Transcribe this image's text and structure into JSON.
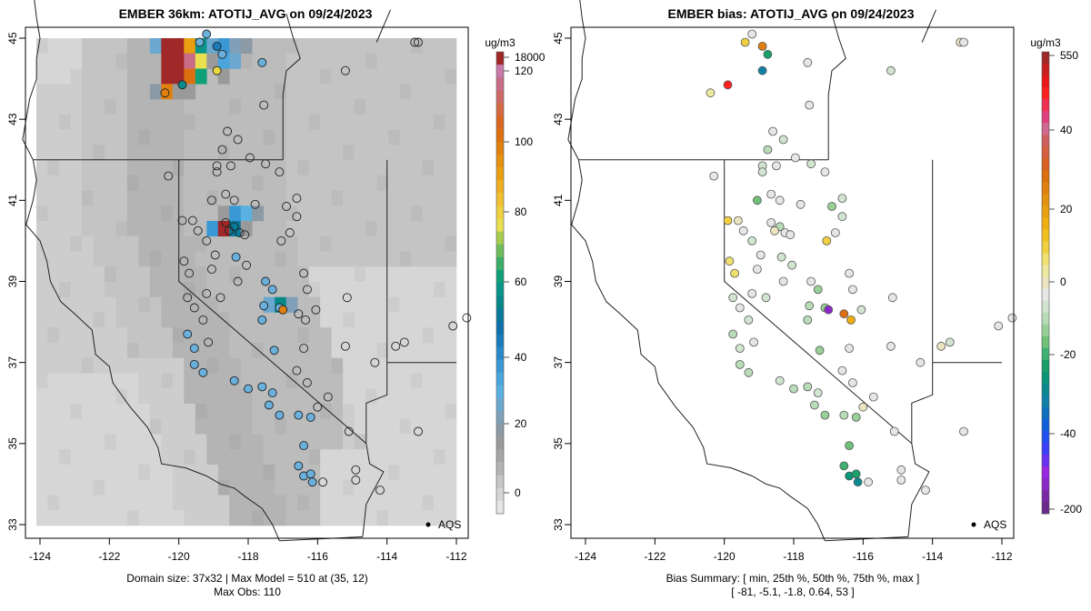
{
  "chart_data": [
    {
      "type": "heatmap",
      "title": "EMBER 36km: ATOTIJ_AVG on 09/24/2023",
      "xlabel": "",
      "ylabel": "",
      "x_ticks": [
        "-124",
        "-122",
        "-120",
        "-118",
        "-116",
        "-114",
        "-112"
      ],
      "y_ticks": [
        "33",
        "35",
        "37",
        "39",
        "41",
        "43",
        "45"
      ],
      "xlim": [
        -124.1,
        -111.9
      ],
      "ylim": [
        32.8,
        45.1
      ],
      "colorbar": {
        "unit": "ug/m3",
        "tick_labels": [
          "0",
          "20",
          "40",
          "60",
          "80",
          "100",
          "120",
          "18000"
        ],
        "colors": [
          "#e6e6e6",
          "#d6d6d6",
          "#c6c6c6",
          "#b4b4b4",
          "#a6a6a6",
          "#9a9a9a",
          "#8c9aa5",
          "#7fa0b8",
          "#6aa8cf",
          "#5ab0e0",
          "#4aa5dc",
          "#3a98d5",
          "#2a8ac8",
          "#1a7cba",
          "#0f70aa",
          "#0a7a9a",
          "#078888",
          "#08958a",
          "#10a078",
          "#3cae68",
          "#70bd5c",
          "#a8cc50",
          "#e8e050",
          "#f0d040",
          "#f2c030",
          "#eeb020",
          "#e8a010",
          "#e49010",
          "#e08010",
          "#dc7010",
          "#d86620",
          "#d46840",
          "#cc6a68",
          "#c86c88",
          "#c87aa8",
          "#a02828"
        ]
      },
      "annotation": "AQS",
      "footer_lines": [
        "Domain size: 37x32 | Max Model = 510 at (35, 12)",
        "Max Obs: 110"
      ],
      "grid_cols": 37,
      "grid_rows": 32,
      "grid_note": "values approximate, ug/m3 (row 0 = north)",
      "hotspots": [
        {
          "col": 10,
          "row": 0,
          "value": 30
        },
        {
          "col": 11,
          "row": 0,
          "value": 510
        },
        {
          "col": 12,
          "row": 0,
          "value": 510
        },
        {
          "col": 13,
          "row": 0,
          "value": 95
        },
        {
          "col": 14,
          "row": 0,
          "value": 62
        },
        {
          "col": 15,
          "row": 0,
          "value": 28
        },
        {
          "col": 16,
          "row": 0,
          "value": 42
        },
        {
          "col": 17,
          "row": 0,
          "value": 25
        },
        {
          "col": 18,
          "row": 0,
          "value": 22
        },
        {
          "col": 11,
          "row": 1,
          "value": 510
        },
        {
          "col": 12,
          "row": 1,
          "value": 510
        },
        {
          "col": 13,
          "row": 1,
          "value": 122
        },
        {
          "col": 14,
          "row": 1,
          "value": 80
        },
        {
          "col": 15,
          "row": 1,
          "value": 18
        },
        {
          "col": 16,
          "row": 1,
          "value": 35
        },
        {
          "col": 17,
          "row": 1,
          "value": 30
        },
        {
          "col": 11,
          "row": 2,
          "value": 510
        },
        {
          "col": 12,
          "row": 2,
          "value": 510
        },
        {
          "col": 13,
          "row": 2,
          "value": 108
        },
        {
          "col": 14,
          "row": 2,
          "value": 65
        },
        {
          "col": 16,
          "row": 2,
          "value": 18
        },
        {
          "col": 10,
          "row": 3,
          "value": 22
        },
        {
          "col": 11,
          "row": 3,
          "value": 104
        },
        {
          "col": 12,
          "row": 3,
          "value": 18
        },
        {
          "col": 13,
          "row": 3,
          "value": 18
        },
        {
          "col": 16,
          "row": 11,
          "value": 18
        },
        {
          "col": 17,
          "row": 11,
          "value": 40
        },
        {
          "col": 18,
          "row": 11,
          "value": 32
        },
        {
          "col": 19,
          "row": 11,
          "value": 22
        },
        {
          "col": 15,
          "row": 12,
          "value": 42
        },
        {
          "col": 16,
          "row": 12,
          "value": 510
        },
        {
          "col": 17,
          "row": 12,
          "value": 55
        },
        {
          "col": 18,
          "row": 12,
          "value": 20
        },
        {
          "col": 20,
          "row": 17,
          "value": 28
        },
        {
          "col": 21,
          "row": 17,
          "value": 60
        },
        {
          "col": 22,
          "row": 17,
          "value": 25
        }
      ]
    },
    {
      "type": "scatter",
      "title": "EMBER bias: ATOTIJ_AVG on 09/24/2023",
      "xlabel": "",
      "ylabel": "",
      "x_ticks": [
        "-124",
        "-122",
        "-120",
        "-118",
        "-116",
        "-114",
        "-112"
      ],
      "y_ticks": [
        "33",
        "35",
        "37",
        "39",
        "41",
        "43",
        "45"
      ],
      "xlim": [
        -124.1,
        -111.9
      ],
      "ylim": [
        32.8,
        45.1
      ],
      "colorbar": {
        "unit": "ug/m3",
        "tick_labels": [
          "-200",
          "-40",
          "-20",
          "0",
          "20",
          "40",
          "550"
        ],
        "colors": [
          "#6a2a8a",
          "#7a28a8",
          "#8a28c8",
          "#9a28e0",
          "#6a30f0",
          "#3a40f8",
          "#2050f0",
          "#1060d8",
          "#1070c0",
          "#1080a8",
          "#0a8a90",
          "#0a9478",
          "#18a068",
          "#40b070",
          "#70c078",
          "#98d098",
          "#b8dcb8",
          "#d0e4d0",
          "#e6e6e6",
          "#eae4c0",
          "#ece8a0",
          "#f0e070",
          "#f0d040",
          "#f0c020",
          "#eeb010",
          "#e8a010",
          "#e49010",
          "#e08010",
          "#dc7010",
          "#d86020",
          "#d46040",
          "#d06060",
          "#d06890",
          "#e04080",
          "#f03050",
          "#ff2020",
          "#e81818",
          "#c82020",
          "#a02828"
        ]
      },
      "annotation": "AQS",
      "footer_lines": [
        "Bias Summary: [ min, 25th %, 50th %, 75th %, max ]",
        "[ -81,   -5.1,   -1.8,   0.64,   53 ]"
      ],
      "bias_summary": {
        "min": -81,
        "p25": -5.1,
        "p50": -1.8,
        "p75": 0.64,
        "max": 53
      }
    }
  ],
  "sites": [
    {
      "lon": -119.2,
      "lat": 45.1,
      "obs": 25,
      "bias": 0
    },
    {
      "lon": -119.4,
      "lat": 44.9,
      "obs": 22,
      "bias": 10
    },
    {
      "lon": -118.9,
      "lat": 44.8,
      "obs": 40,
      "bias": 22
    },
    {
      "lon": -118.75,
      "lat": 44.6,
      "obs": 28,
      "bias": -15
    },
    {
      "lon": -117.6,
      "lat": 44.4,
      "obs": 18,
      "bias": 0
    },
    {
      "lon": -115.2,
      "lat": 44.2,
      "obs": 5,
      "bias": -2
    },
    {
      "lon": -118.9,
      "lat": 44.2,
      "obs": 75,
      "bias": -22
    },
    {
      "lon": -119.9,
      "lat": 43.85,
      "obs": 55,
      "bias": 53
    },
    {
      "lon": -120.4,
      "lat": 43.65,
      "obs": 5,
      "bias": 5
    },
    {
      "lon": -117.55,
      "lat": 43.35,
      "obs": 5,
      "bias": 0
    },
    {
      "lon": -118.6,
      "lat": 42.7,
      "obs": 5,
      "bias": 0
    },
    {
      "lon": -118.3,
      "lat": 42.5,
      "obs": 5,
      "bias": -3
    },
    {
      "lon": -118.75,
      "lat": 42.25,
      "obs": 5,
      "bias": -6
    },
    {
      "lon": -117.95,
      "lat": 42.05,
      "obs": 5,
      "bias": 0
    },
    {
      "lon": -118.9,
      "lat": 41.85,
      "obs": 5,
      "bias": -2
    },
    {
      "lon": -118.5,
      "lat": 41.85,
      "obs": 5,
      "bias": -1
    },
    {
      "lon": -117.5,
      "lat": 41.9,
      "obs": 5,
      "bias": -2
    },
    {
      "lon": -117.1,
      "lat": 41.7,
      "obs": 5,
      "bias": 0
    },
    {
      "lon": -120.3,
      "lat": 41.6,
      "obs": 5,
      "bias": 0
    },
    {
      "lon": -119.05,
      "lat": 41.0,
      "obs": 5,
      "bias": -10
    },
    {
      "lon": -118.65,
      "lat": 41.15,
      "obs": 5,
      "bias": 0
    },
    {
      "lon": -118.4,
      "lat": 41.0,
      "obs": 5,
      "bias": 0
    },
    {
      "lon": -117.8,
      "lat": 40.9,
      "obs": 5,
      "bias": -1
    },
    {
      "lon": -116.9,
      "lat": 40.85,
      "obs": 5,
      "bias": -8
    },
    {
      "lon": -116.6,
      "lat": 41.05,
      "obs": 5,
      "bias": -2
    },
    {
      "lon": -116.6,
      "lat": 40.6,
      "obs": 5,
      "bias": -3
    },
    {
      "lon": -116.8,
      "lat": 40.2,
      "obs": 5,
      "bias": 0
    },
    {
      "lon": -119.9,
      "lat": 40.5,
      "obs": 5,
      "bias": 10
    },
    {
      "lon": -118.65,
      "lat": 40.45,
      "obs": 5,
      "bias": 0
    },
    {
      "lon": -118.4,
      "lat": 40.35,
      "obs": 5,
      "bias": -6
    },
    {
      "lon": -118.25,
      "lat": 40.2,
      "obs": 5,
      "bias": 0
    },
    {
      "lon": -118.55,
      "lat": 40.25,
      "obs": 5,
      "bias": 2
    },
    {
      "lon": -118.1,
      "lat": 40.15,
      "obs": 5,
      "bias": 0
    },
    {
      "lon": -117.05,
      "lat": 40.0,
      "obs": 5,
      "bias": 10
    },
    {
      "lon": -118.35,
      "lat": 39.6,
      "obs": 25,
      "bias": -3
    },
    {
      "lon": -118.05,
      "lat": 39.4,
      "obs": 5,
      "bias": -4
    },
    {
      "lon": -116.4,
      "lat": 39.2,
      "obs": 5,
      "bias": 0
    },
    {
      "lon": -116.3,
      "lat": 38.8,
      "obs": 5,
      "bias": 0
    },
    {
      "lon": -116.05,
      "lat": 38.3,
      "obs": 5,
      "bias": -2
    },
    {
      "lon": -117.5,
      "lat": 39.0,
      "obs": 25,
      "bias": 0
    },
    {
      "lon": -117.3,
      "lat": 38.8,
      "obs": 25,
      "bias": -8
    },
    {
      "lon": -117.55,
      "lat": 38.4,
      "obs": 25,
      "bias": -6
    },
    {
      "lon": -117.1,
      "lat": 38.35,
      "obs": 28,
      "bias": -8
    },
    {
      "lon": -117.0,
      "lat": 38.3,
      "obs": 110,
      "bias": -81
    },
    {
      "lon": -116.55,
      "lat": 38.2,
      "obs": 5,
      "bias": 25
    },
    {
      "lon": -116.35,
      "lat": 38.05,
      "obs": 5,
      "bias": 15
    },
    {
      "lon": -117.6,
      "lat": 38.05,
      "obs": 28,
      "bias": -5
    },
    {
      "lon": -117.25,
      "lat": 37.3,
      "obs": 25,
      "bias": -8
    },
    {
      "lon": -116.4,
      "lat": 37.35,
      "obs": 5,
      "bias": 0
    },
    {
      "lon": -116.6,
      "lat": 36.8,
      "obs": 5,
      "bias": 0
    },
    {
      "lon": -116.3,
      "lat": 36.5,
      "obs": 5,
      "bias": 0
    },
    {
      "lon": -115.7,
      "lat": 36.15,
      "obs": 5,
      "bias": 0
    },
    {
      "lon": -116.0,
      "lat": 35.9,
      "obs": 5,
      "bias": 3
    },
    {
      "lon": -116.2,
      "lat": 35.65,
      "obs": 28,
      "bias": -8
    },
    {
      "lon": -116.55,
      "lat": 35.7,
      "obs": 28,
      "bias": -6
    },
    {
      "lon": -117.1,
      "lat": 35.7,
      "obs": 28,
      "bias": -8
    },
    {
      "lon": -117.4,
      "lat": 35.95,
      "obs": 28,
      "bias": -6
    },
    {
      "lon": -117.3,
      "lat": 36.25,
      "obs": 28,
      "bias": -4
    },
    {
      "lon": -117.6,
      "lat": 36.4,
      "obs": 28,
      "bias": -5
    },
    {
      "lon": -118.0,
      "lat": 36.35,
      "obs": 28,
      "bias": -6
    },
    {
      "lon": -118.4,
      "lat": 36.55,
      "obs": 28,
      "bias": -3
    },
    {
      "lon": -119.3,
      "lat": 36.75,
      "obs": 28,
      "bias": -5
    },
    {
      "lon": -119.55,
      "lat": 36.95,
      "obs": 28,
      "bias": -5
    },
    {
      "lon": -119.55,
      "lat": 37.35,
      "obs": 28,
      "bias": -4
    },
    {
      "lon": -119.75,
      "lat": 37.7,
      "obs": 28,
      "bias": -6
    },
    {
      "lon": -116.4,
      "lat": 34.95,
      "obs": 28,
      "bias": -10
    },
    {
      "lon": -116.55,
      "lat": 34.45,
      "obs": 28,
      "bias": -12
    },
    {
      "lon": -116.4,
      "lat": 34.2,
      "obs": 28,
      "bias": -18
    },
    {
      "lon": -116.2,
      "lat": 34.25,
      "obs": 28,
      "bias": -15
    },
    {
      "lon": -116.15,
      "lat": 34.05,
      "obs": 28,
      "bias": -20
    },
    {
      "lon": -115.85,
      "lat": 34.05,
      "obs": 5,
      "bias": 0
    },
    {
      "lon": -114.9,
      "lat": 34.1,
      "obs": 5,
      "bias": 0
    },
    {
      "lon": -114.9,
      "lat": 34.35,
      "obs": 5,
      "bias": 0
    },
    {
      "lon": -114.2,
      "lat": 33.85,
      "obs": 5,
      "bias": 0
    },
    {
      "lon": -115.1,
      "lat": 35.3,
      "obs": 5,
      "bias": 0
    },
    {
      "lon": -114.35,
      "lat": 37.0,
      "obs": 5,
      "bias": 0
    },
    {
      "lon": -113.75,
      "lat": 37.4,
      "obs": 5,
      "bias": 3
    },
    {
      "lon": -113.5,
      "lat": 37.5,
      "obs": 5,
      "bias": -3
    },
    {
      "lon": -113.1,
      "lat": 35.3,
      "obs": 5,
      "bias": 0
    },
    {
      "lon": -112.1,
      "lat": 37.9,
      "obs": 5,
      "bias": 0
    },
    {
      "lon": -111.7,
      "lat": 38.1,
      "obs": 5,
      "bias": 0
    },
    {
      "lon": -113.2,
      "lat": 44.9,
      "obs": 5,
      "bias": 2
    },
    {
      "lon": -113.1,
      "lat": 44.9,
      "obs": 5,
      "bias": 0
    },
    {
      "lon": -115.15,
      "lat": 38.6,
      "obs": 5,
      "bias": 0
    },
    {
      "lon": -115.2,
      "lat": 37.4,
      "obs": 5,
      "bias": 0
    },
    {
      "lon": -118.3,
      "lat": 39.0,
      "obs": 5,
      "bias": 0
    },
    {
      "lon": -118.8,
      "lat": 38.6,
      "obs": 5,
      "bias": -2
    },
    {
      "lon": -119.05,
      "lat": 39.3,
      "obs": 5,
      "bias": -1
    },
    {
      "lon": -119.2,
      "lat": 38.7,
      "obs": 5,
      "bias": 0
    },
    {
      "lon": -119.55,
      "lat": 38.35,
      "obs": 5,
      "bias": -1
    },
    {
      "lon": -119.75,
      "lat": 38.6,
      "obs": 5,
      "bias": -2
    },
    {
      "lon": -119.85,
      "lat": 39.5,
      "obs": 5,
      "bias": 8
    },
    {
      "lon": -119.7,
      "lat": 39.2,
      "obs": 5,
      "bias": 6
    },
    {
      "lon": -119.3,
      "lat": 38.05,
      "obs": 5,
      "bias": -3
    },
    {
      "lon": -119.15,
      "lat": 37.5,
      "obs": 5,
      "bias": 0
    },
    {
      "lon": -119.45,
      "lat": 40.25,
      "obs": 5,
      "bias": -1
    },
    {
      "lon": -119.6,
      "lat": 40.5,
      "obs": 5,
      "bias": 2
    },
    {
      "lon": -119.2,
      "lat": 40.0,
      "obs": 5,
      "bias": -2
    },
    {
      "lon": -118.95,
      "lat": 39.65,
      "obs": 5,
      "bias": 0
    },
    {
      "lon": -118.9,
      "lat": 41.7,
      "obs": 5,
      "bias": -2
    }
  ]
}
